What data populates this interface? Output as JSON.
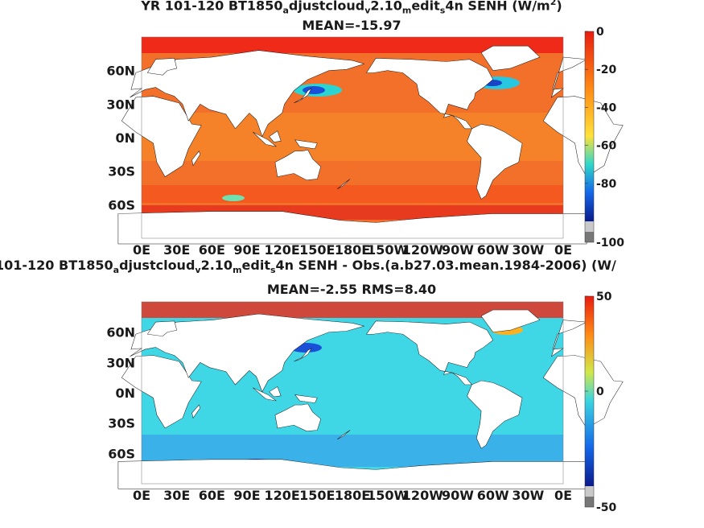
{
  "chart_data": [
    {
      "type": "heatmap",
      "title": {
        "p1": "YR 101-120 BT1850",
        "s1": "a",
        "p2": "djustcloud",
        "s2": "v",
        "p3": "2.10",
        "s3": "m",
        "p4": "edit",
        "s4": "s",
        "p5": "4n  SENH (W/m",
        "sup": "2",
        "p6": ")"
      },
      "subtitle": "MEAN=-15.97",
      "x_ticks": [
        "0E",
        "30E",
        "60E",
        "90E",
        "120E",
        "150E",
        "180E",
        "150W",
        "120W",
        "90W",
        "60W",
        "30W",
        "0E"
      ],
      "y_ticks": [
        "60N",
        "30N",
        "0N",
        "30S",
        "60S"
      ],
      "xlim": [
        0,
        360
      ],
      "ylim": [
        -90,
        90
      ],
      "colorbar": {
        "ticks": [
          "0",
          "-20",
          "-40",
          "-60",
          "-80",
          "-100"
        ],
        "tick_values": [
          0,
          -20,
          -40,
          -60,
          -80,
          -100
        ],
        "range": [
          -100,
          0
        ]
      }
    },
    {
      "type": "heatmap",
      "title": {
        "p1": "101-120 BT1850",
        "s1": "a",
        "p2": "djustcloud",
        "s2": "v",
        "p3": "2.10",
        "s3": "m",
        "p4": "edit",
        "s4": "s",
        "p5": "4n SENH - Obs.(a.b27.03.mean.1984-2006) (W/",
        "sup": "",
        "p6": ""
      },
      "subtitle": "MEAN=-2.55 RMS=8.40",
      "x_ticks": [
        "0E",
        "30E",
        "60E",
        "90E",
        "120E",
        "150E",
        "180E",
        "150W",
        "120W",
        "90W",
        "60W",
        "30W",
        "0E"
      ],
      "y_ticks": [
        "60N",
        "30N",
        "0N",
        "30S",
        "60S"
      ],
      "xlim": [
        0,
        360
      ],
      "ylim": [
        -90,
        90
      ],
      "colorbar": {
        "ticks": [
          "50",
          "0",
          "-50"
        ],
        "tick_values": [
          50,
          0,
          -50
        ],
        "range": [
          -50,
          50
        ]
      }
    }
  ]
}
